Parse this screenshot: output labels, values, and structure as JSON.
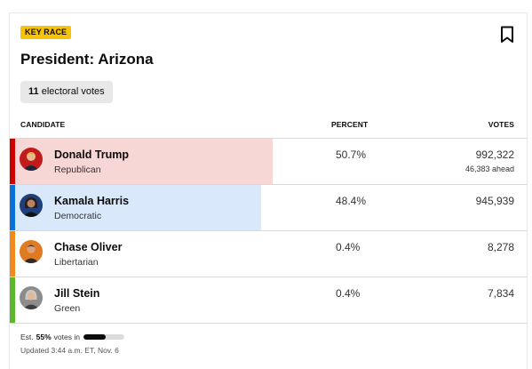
{
  "race": {
    "badge": "KEY RACE",
    "title": "President: Arizona",
    "electoral_votes_number": "11",
    "electoral_votes_label": "electoral votes"
  },
  "table": {
    "headers": {
      "candidate": "CANDIDATE",
      "percent": "PERCENT",
      "votes": "VOTES"
    },
    "rows": [
      {
        "name": "Donald Trump",
        "party": "Republican",
        "percent": "50.7%",
        "votes": "992,322",
        "ahead": "46,383 ahead",
        "party_color": "#cc0000",
        "bar_color": "#f7d6d6",
        "share": 0.507,
        "avatar_bg": "#c21b1b"
      },
      {
        "name": "Kamala Harris",
        "party": "Democratic",
        "percent": "48.4%",
        "votes": "945,939",
        "ahead": "",
        "party_color": "#0a6fd6",
        "bar_color": "#d9e8fa",
        "share": 0.484,
        "avatar_bg": "#1f3f7a"
      },
      {
        "name": "Chase Oliver",
        "party": "Libertarian",
        "percent": "0.4%",
        "votes": "8,278",
        "ahead": "",
        "party_color": "#f08a1c",
        "bar_color": "",
        "share": 0,
        "avatar_bg": "#e07a22"
      },
      {
        "name": "Jill Stein",
        "party": "Green",
        "percent": "0.4%",
        "votes": "7,834",
        "ahead": "",
        "party_color": "#5bb82e",
        "bar_color": "",
        "share": 0,
        "avatar_bg": "#8c8c8c"
      }
    ]
  },
  "footer": {
    "est_prefix": "Est.",
    "est_value": "55%",
    "est_suffix": "votes in",
    "votes_in_fraction": 0.55,
    "updated": "Updated 3:44 a.m. ET, Nov. 6"
  },
  "icons": {
    "bookmark": "bookmark-icon"
  }
}
